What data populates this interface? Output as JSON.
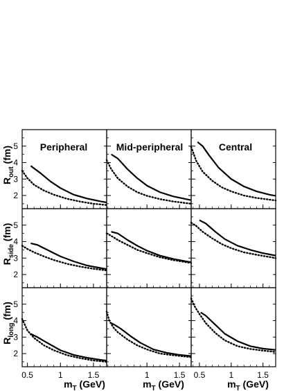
{
  "chart_data": {
    "type": "line",
    "layout": "3x3 panel grid, shared axes",
    "columns": [
      "Peripheral",
      "Mid-peripheral",
      "Central"
    ],
    "rows": [
      {
        "label_main": "R",
        "label_sub": "out",
        "unit": "(fm)"
      },
      {
        "label_main": "R",
        "label_sub": "side",
        "unit": "(fm)"
      },
      {
        "label_main": "R",
        "label_sub": "long",
        "unit": "(fm)"
      }
    ],
    "xlabel": {
      "main": "m",
      "sub": "T",
      "unit": "(GeV)"
    },
    "ylim": [
      1.2,
      6.0
    ],
    "y_ticks": [
      2,
      3,
      4,
      5
    ],
    "x_ticks_per_column": [
      [
        {
          "v": 0.5,
          "t": "0.5"
        },
        {
          "v": 1.0,
          "t": "1"
        },
        {
          "v": 1.5,
          "t": "1.5"
        }
      ],
      [
        {
          "v": 1.0,
          "t": "1"
        },
        {
          "v": 1.5,
          "t": "1.5"
        }
      ],
      [
        {
          "v": 0.5,
          "t": "0.5"
        },
        {
          "v": 1.0,
          "t": "1"
        },
        {
          "v": 1.5,
          "t": "1.5"
        }
      ]
    ],
    "xlim_per_column": [
      [
        0.42,
        1.7
      ],
      [
        0.38,
        1.68
      ],
      [
        0.37,
        1.7
      ]
    ],
    "series_styles": [
      "solid",
      "dotted"
    ],
    "panels": [
      [
        {
          "solid": {
            "x": [
              0.55,
              0.7,
              0.85,
              1.0,
              1.2,
              1.4,
              1.6,
              1.7
            ],
            "y": [
              3.8,
              3.35,
              2.85,
              2.45,
              2.05,
              1.82,
              1.65,
              1.58
            ]
          },
          "dotted": {
            "x": [
              0.42,
              0.5,
              0.6,
              0.75,
              0.9,
              1.1,
              1.3,
              1.5,
              1.7
            ],
            "y": [
              3.5,
              3.05,
              2.65,
              2.3,
              2.05,
              1.8,
              1.63,
              1.5,
              1.42
            ]
          }
        },
        {
          "solid": {
            "x": [
              0.45,
              0.55,
              0.7,
              0.85,
              1.0,
              1.2,
              1.4,
              1.6,
              1.68
            ],
            "y": [
              4.5,
              4.25,
              3.6,
              3.05,
              2.6,
              2.2,
              1.95,
              1.78,
              1.72
            ]
          },
          "dotted": {
            "x": [
              0.38,
              0.45,
              0.55,
              0.7,
              0.85,
              1.0,
              1.2,
              1.4,
              1.68
            ],
            "y": [
              4.15,
              3.6,
              3.05,
              2.55,
              2.2,
              1.98,
              1.78,
              1.64,
              1.5
            ]
          }
        },
        {
          "solid": {
            "x": [
              0.47,
              0.55,
              0.65,
              0.8,
              1.0,
              1.2,
              1.4,
              1.6,
              1.7
            ],
            "y": [
              5.25,
              5.0,
              4.45,
              3.7,
              3.0,
              2.55,
              2.25,
              2.05,
              1.98
            ]
          },
          "dotted": {
            "x": [
              0.37,
              0.45,
              0.55,
              0.7,
              0.85,
              1.0,
              1.2,
              1.4,
              1.7
            ],
            "y": [
              4.95,
              4.1,
              3.45,
              2.9,
              2.5,
              2.25,
              2.0,
              1.85,
              1.7
            ]
          }
        }
      ],
      [
        {
          "solid": {
            "x": [
              0.55,
              0.65,
              0.8,
              1.0,
              1.2,
              1.4,
              1.6,
              1.7
            ],
            "y": [
              3.9,
              3.8,
              3.5,
              3.1,
              2.8,
              2.55,
              2.4,
              2.33
            ]
          },
          "dotted": {
            "x": [
              0.42,
              0.5,
              0.6,
              0.75,
              0.9,
              1.1,
              1.3,
              1.5,
              1.7
            ],
            "y": [
              3.75,
              3.55,
              3.35,
              3.1,
              2.88,
              2.65,
              2.48,
              2.35,
              2.25
            ]
          }
        },
        {
          "solid": {
            "x": [
              0.45,
              0.55,
              0.7,
              0.85,
              1.0,
              1.2,
              1.4,
              1.6,
              1.68
            ],
            "y": [
              4.6,
              4.5,
              4.1,
              3.75,
              3.45,
              3.15,
              2.95,
              2.8,
              2.75
            ]
          },
          "dotted": {
            "x": [
              0.38,
              0.45,
              0.55,
              0.7,
              0.85,
              1.0,
              1.2,
              1.4,
              1.68
            ],
            "y": [
              4.5,
              4.35,
              4.1,
              3.8,
              3.5,
              3.3,
              3.05,
              2.88,
              2.7
            ]
          }
        },
        {
          "solid": {
            "x": [
              0.5,
              0.6,
              0.75,
              0.9,
              1.1,
              1.3,
              1.5,
              1.7
            ],
            "y": [
              5.3,
              5.1,
              4.6,
              4.15,
              3.75,
              3.5,
              3.3,
              3.15
            ]
          },
          "dotted": {
            "x": [
              0.37,
              0.45,
              0.55,
              0.7,
              0.85,
              1.0,
              1.2,
              1.4,
              1.7
            ],
            "y": [
              5.15,
              4.95,
              4.6,
              4.2,
              3.85,
              3.6,
              3.35,
              3.2,
              3.0
            ]
          }
        }
      ],
      [
        {
          "solid": {
            "x": [
              0.55,
              0.65,
              0.8,
              1.0,
              1.2,
              1.4,
              1.6,
              1.7
            ],
            "y": [
              3.2,
              3.0,
              2.65,
              2.2,
              1.92,
              1.75,
              1.62,
              1.57
            ]
          },
          "dotted": {
            "x": [
              0.42,
              0.5,
              0.6,
              0.75,
              0.9,
              1.1,
              1.3,
              1.5,
              1.7
            ],
            "y": [
              4.1,
              3.4,
              2.95,
              2.5,
              2.2,
              1.9,
              1.72,
              1.58,
              1.5
            ]
          }
        },
        {
          "solid": {
            "x": [
              0.45,
              0.5,
              0.6,
              0.75,
              0.9,
              1.1,
              1.3,
              1.5,
              1.68
            ],
            "y": [
              3.85,
              3.75,
              3.5,
              3.05,
              2.65,
              2.25,
              2.05,
              1.92,
              1.85
            ]
          },
          "dotted": {
            "x": [
              0.38,
              0.42,
              0.48,
              0.55,
              0.7,
              0.85,
              1.0,
              1.2,
              1.4,
              1.68
            ],
            "y": [
              4.55,
              4.0,
              3.6,
              3.3,
              2.85,
              2.5,
              2.25,
              2.0,
              1.9,
              1.78
            ]
          }
        },
        {
          "solid": {
            "x": [
              0.52,
              0.6,
              0.75,
              0.9,
              1.1,
              1.3,
              1.5,
              1.7
            ],
            "y": [
              4.5,
              4.3,
              3.75,
              3.2,
              2.75,
              2.45,
              2.3,
              2.22
            ]
          },
          "dotted": {
            "x": [
              0.37,
              0.42,
              0.5,
              0.6,
              0.75,
              0.9,
              1.1,
              1.3,
              1.5,
              1.7
            ],
            "y": [
              5.35,
              4.9,
              4.4,
              3.85,
              3.25,
              2.8,
              2.45,
              2.28,
              2.18,
              2.1
            ]
          }
        }
      ]
    ]
  }
}
